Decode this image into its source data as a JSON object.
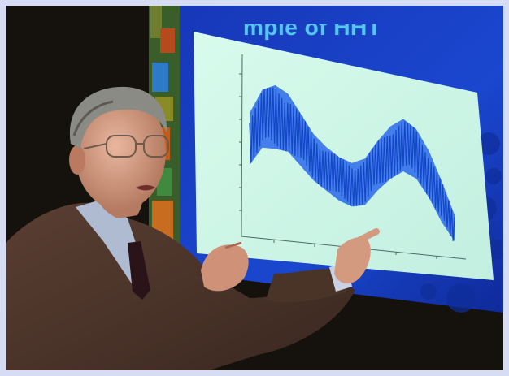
{
  "slide": {
    "heading_fragment": "mple of HHT"
  },
  "colors": {
    "page_border": "#d6dcf4",
    "backdrop": "#15110d",
    "slide_blue": "#1a43c8",
    "plot_panel": "#cdf5e6",
    "signal": "#2060e8"
  },
  "plot_signal": {
    "kind": "envelope",
    "center": [
      0.55,
      0.7,
      0.72,
      0.69,
      0.58,
      0.47,
      0.4,
      0.34,
      0.31,
      0.34,
      0.46,
      0.56,
      0.62,
      0.57,
      0.44,
      0.26,
      0.06
    ],
    "amplitude": [
      0.18,
      0.2,
      0.22,
      0.2,
      0.18,
      0.16,
      0.15,
      0.15,
      0.15,
      0.16,
      0.17,
      0.18,
      0.18,
      0.17,
      0.16,
      0.14,
      0.12
    ]
  }
}
